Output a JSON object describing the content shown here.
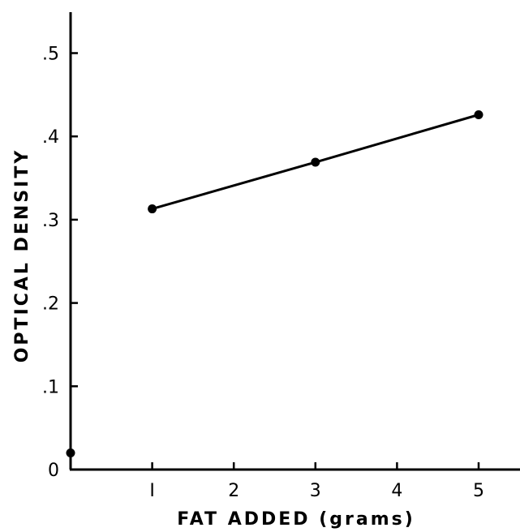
{
  "chart_data": {
    "type": "line",
    "title": "",
    "xlabel": "FAT ADDED (grams)",
    "ylabel": "OPTICAL DENSITY",
    "xlim": [
      0,
      5.5
    ],
    "ylim": [
      0,
      0.55
    ],
    "x_ticks": [
      {
        "value": 1,
        "label": "I"
      },
      {
        "value": 2,
        "label": "2"
      },
      {
        "value": 3,
        "label": "3"
      },
      {
        "value": 4,
        "label": "4"
      },
      {
        "value": 5,
        "label": "5"
      }
    ],
    "y_ticks": [
      {
        "value": 0,
        "label": "0"
      },
      {
        "value": 0.1,
        "label": ".1"
      },
      {
        "value": 0.2,
        "label": ".2"
      },
      {
        "value": 0.3,
        "label": ".3"
      },
      {
        "value": 0.4,
        "label": ".4"
      },
      {
        "value": 0.5,
        "label": ".5"
      }
    ],
    "grid": false,
    "series": [
      {
        "points": [
          {
            "x": 0,
            "y": 0.02
          },
          {
            "x": 1,
            "y": 0.313
          },
          {
            "x": 3,
            "y": 0.369
          },
          {
            "x": 5,
            "y": 0.426
          }
        ],
        "line_from_index": 1
      }
    ]
  }
}
